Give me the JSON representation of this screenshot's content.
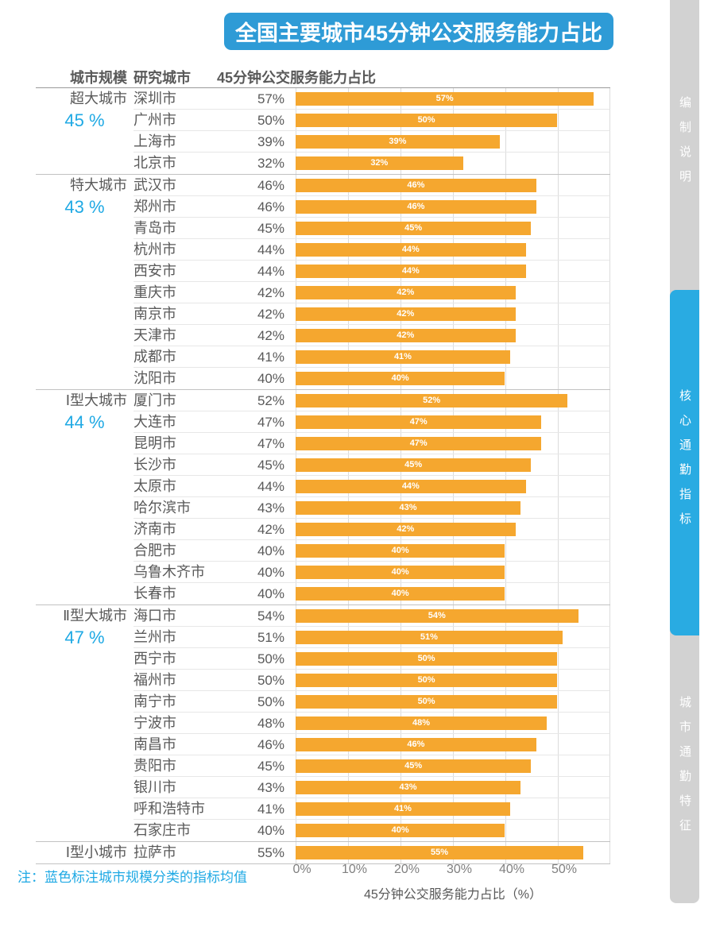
{
  "title": "全国主要城市45分钟公交服务能力占比",
  "columns": {
    "scale": "城市规模",
    "city": "研究城市",
    "value": "45分钟公交服务能力占比"
  },
  "note": "注：蓝色标注城市规模分类的指标均值",
  "sidebar": {
    "tabs": [
      {
        "label": "编制说明",
        "active": false
      },
      {
        "label": "核心通勤指标",
        "active": true
      },
      {
        "label": "城市通勤特征",
        "active": false
      }
    ]
  },
  "colors": {
    "bar_orange": "#F5A72F",
    "accent_blue": "#1FA9E4",
    "banner_blue": "#2E9BD6",
    "sidebar_active_blue": "#29ABE2",
    "sidebar_gray": "#D2D2D2",
    "text_gray": "#595959"
  },
  "chart_data": {
    "type": "bar",
    "orientation": "horizontal",
    "title": "全国主要城市45分钟公交服务能力占比",
    "xlabel": "45分钟公交服务能力占比（%）",
    "xlim": [
      0,
      60
    ],
    "x_ticks": [
      "0%",
      "10%",
      "20%",
      "30%",
      "40%",
      "50%"
    ],
    "grid": true,
    "value_unit": "%",
    "groups": [
      {
        "scale": "超大城市",
        "mean": "45 %",
        "cities": [
          {
            "name": "深圳市",
            "value": 57
          },
          {
            "name": "广州市",
            "value": 50
          },
          {
            "name": "上海市",
            "value": 39
          },
          {
            "name": "北京市",
            "value": 32
          }
        ]
      },
      {
        "scale": "特大城市",
        "mean": "43 %",
        "cities": [
          {
            "name": "武汉市",
            "value": 46
          },
          {
            "name": "郑州市",
            "value": 46
          },
          {
            "name": "青岛市",
            "value": 45
          },
          {
            "name": "杭州市",
            "value": 44
          },
          {
            "name": "西安市",
            "value": 44
          },
          {
            "name": "重庆市",
            "value": 42
          },
          {
            "name": "南京市",
            "value": 42
          },
          {
            "name": "天津市",
            "value": 42
          },
          {
            "name": "成都市",
            "value": 41
          },
          {
            "name": "沈阳市",
            "value": 40
          }
        ]
      },
      {
        "scale": "Ⅰ型大城市",
        "mean": "44 %",
        "cities": [
          {
            "name": "厦门市",
            "value": 52
          },
          {
            "name": "大连市",
            "value": 47
          },
          {
            "name": "昆明市",
            "value": 47
          },
          {
            "name": "长沙市",
            "value": 45
          },
          {
            "name": "太原市",
            "value": 44
          },
          {
            "name": "哈尔滨市",
            "value": 43
          },
          {
            "name": "济南市",
            "value": 42
          },
          {
            "name": "合肥市",
            "value": 40
          },
          {
            "name": "乌鲁木齐市",
            "value": 40
          },
          {
            "name": "长春市",
            "value": 40
          }
        ]
      },
      {
        "scale": "Ⅱ型大城市",
        "mean": "47 %",
        "cities": [
          {
            "name": "海口市",
            "value": 54
          },
          {
            "name": "兰州市",
            "value": 51
          },
          {
            "name": "西宁市",
            "value": 50
          },
          {
            "name": "福州市",
            "value": 50
          },
          {
            "name": "南宁市",
            "value": 50
          },
          {
            "name": "宁波市",
            "value": 48
          },
          {
            "name": "南昌市",
            "value": 46
          },
          {
            "name": "贵阳市",
            "value": 45
          },
          {
            "name": "银川市",
            "value": 43
          },
          {
            "name": "呼和浩特市",
            "value": 41
          },
          {
            "name": "石家庄市",
            "value": 40
          }
        ]
      },
      {
        "scale": "Ⅰ型小城市",
        "mean": null,
        "cities": [
          {
            "name": "拉萨市",
            "value": 55
          }
        ]
      }
    ]
  }
}
